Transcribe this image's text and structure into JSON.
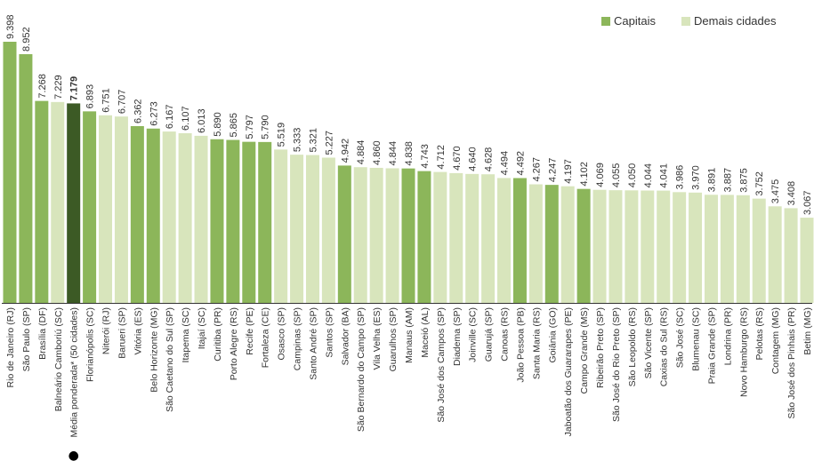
{
  "colors": {
    "capital": "#8cb65a",
    "other": "#d8e5bc",
    "average": "#3c5a25",
    "axis": "#333333",
    "text": "#333333"
  },
  "legend": {
    "capitals": "Capitais",
    "others": "Demais cidades"
  },
  "chart_data": {
    "type": "bar",
    "title": "",
    "xlabel": "",
    "ylabel": "",
    "ylim": [
      0,
      9.6
    ],
    "grid": false,
    "legend_position": "top-right",
    "marker": "●",
    "categories": [
      "Rio de Janeiro (RJ)",
      "São Paulo (SP)",
      "Brasília (DF)",
      "Balneário Camboriú (SC)",
      "Média ponderada* (50 cidades)",
      "Florianópolis (SC)",
      "Niterói (RJ)",
      "Barueri (SP)",
      "Vitória (ES)",
      "Belo Horizonte (MG)",
      "São Caetano do Sul (SP)",
      "Itapema (SC)",
      "Itajaí (SC)",
      "Curitiba (PR)",
      "Porto Alegre (RS)",
      "Recife (PE)",
      "Fortaleza (CE)",
      "Osasco (SP)",
      "Campinas (SP)",
      "Santo André (SP)",
      "Santos (SP)",
      "Salvador (BA)",
      "São Bernardo do Campo (SP)",
      "Vila Velha (ES)",
      "Guarulhos (SP)",
      "Manaus (AM)",
      "Maceió (AL)",
      "São José dos Campos (SP)",
      "Diadema (SP)",
      "Joinville (SC)",
      "Guarujá (SP)",
      "Canoas (RS)",
      "João Pessoa (PB)",
      "Santa Maria (RS)",
      "Goiânia (GO)",
      "Jaboatão dos Guararapes (PE)",
      "Campo Grande (MS)",
      "Ribeirão Preto (SP)",
      "São José do Rio Preto (SP)",
      "São Leopoldo (RS)",
      "São Vicente (SP)",
      "Caxias do Sul (RS)",
      "São José (SC)",
      "Blumenau (SC)",
      "Praia Grande (SP)",
      "Londrina (PR)",
      "Novo Hamburgo (RS)",
      "Pelotas (RS)",
      "Contagem (MG)",
      "São José dos Pinhais (PR)",
      "Betim (MG)"
    ],
    "values": [
      9.398,
      8.952,
      7.268,
      7.229,
      7.179,
      6.893,
      6.751,
      6.707,
      6.362,
      6.273,
      6.167,
      6.107,
      6.013,
      5.89,
      5.865,
      5.797,
      5.79,
      5.519,
      5.333,
      5.321,
      5.227,
      4.942,
      4.884,
      4.86,
      4.844,
      4.838,
      4.743,
      4.712,
      4.67,
      4.64,
      4.628,
      4.494,
      4.492,
      4.267,
      4.247,
      4.197,
      4.102,
      4.069,
      4.055,
      4.05,
      4.044,
      4.041,
      3.986,
      3.97,
      3.891,
      3.887,
      3.875,
      3.752,
      3.475,
      3.408,
      3.067
    ],
    "value_labels": [
      "9.398",
      "8.952",
      "7.268",
      "7.229",
      "7.179",
      "6.893",
      "6.751",
      "6.707",
      "6.362",
      "6.273",
      "6.167",
      "6.107",
      "6.013",
      "5.890",
      "5.865",
      "5.797",
      "5.790",
      "5.519",
      "5.333",
      "5.321",
      "5.227",
      "4.942",
      "4.884",
      "4.860",
      "4.844",
      "4.838",
      "4.743",
      "4.712",
      "4.670",
      "4.640",
      "4.628",
      "4.494",
      "4.492",
      "4.267",
      "4.247",
      "4.197",
      "4.102",
      "4.069",
      "4.055",
      "4.050",
      "4.044",
      "4.041",
      "3.986",
      "3.970",
      "3.891",
      "3.887",
      "3.875",
      "3.752",
      "3.475",
      "3.408",
      "3.067"
    ],
    "kind": [
      "capital",
      "capital",
      "capital",
      "other",
      "average",
      "capital",
      "other",
      "other",
      "capital",
      "capital",
      "other",
      "other",
      "other",
      "capital",
      "capital",
      "capital",
      "capital",
      "other",
      "other",
      "other",
      "other",
      "capital",
      "other",
      "other",
      "other",
      "capital",
      "capital",
      "other",
      "other",
      "other",
      "other",
      "other",
      "capital",
      "other",
      "capital",
      "other",
      "capital",
      "other",
      "other",
      "other",
      "other",
      "other",
      "other",
      "other",
      "other",
      "other",
      "other",
      "other",
      "other",
      "other",
      "other"
    ]
  }
}
